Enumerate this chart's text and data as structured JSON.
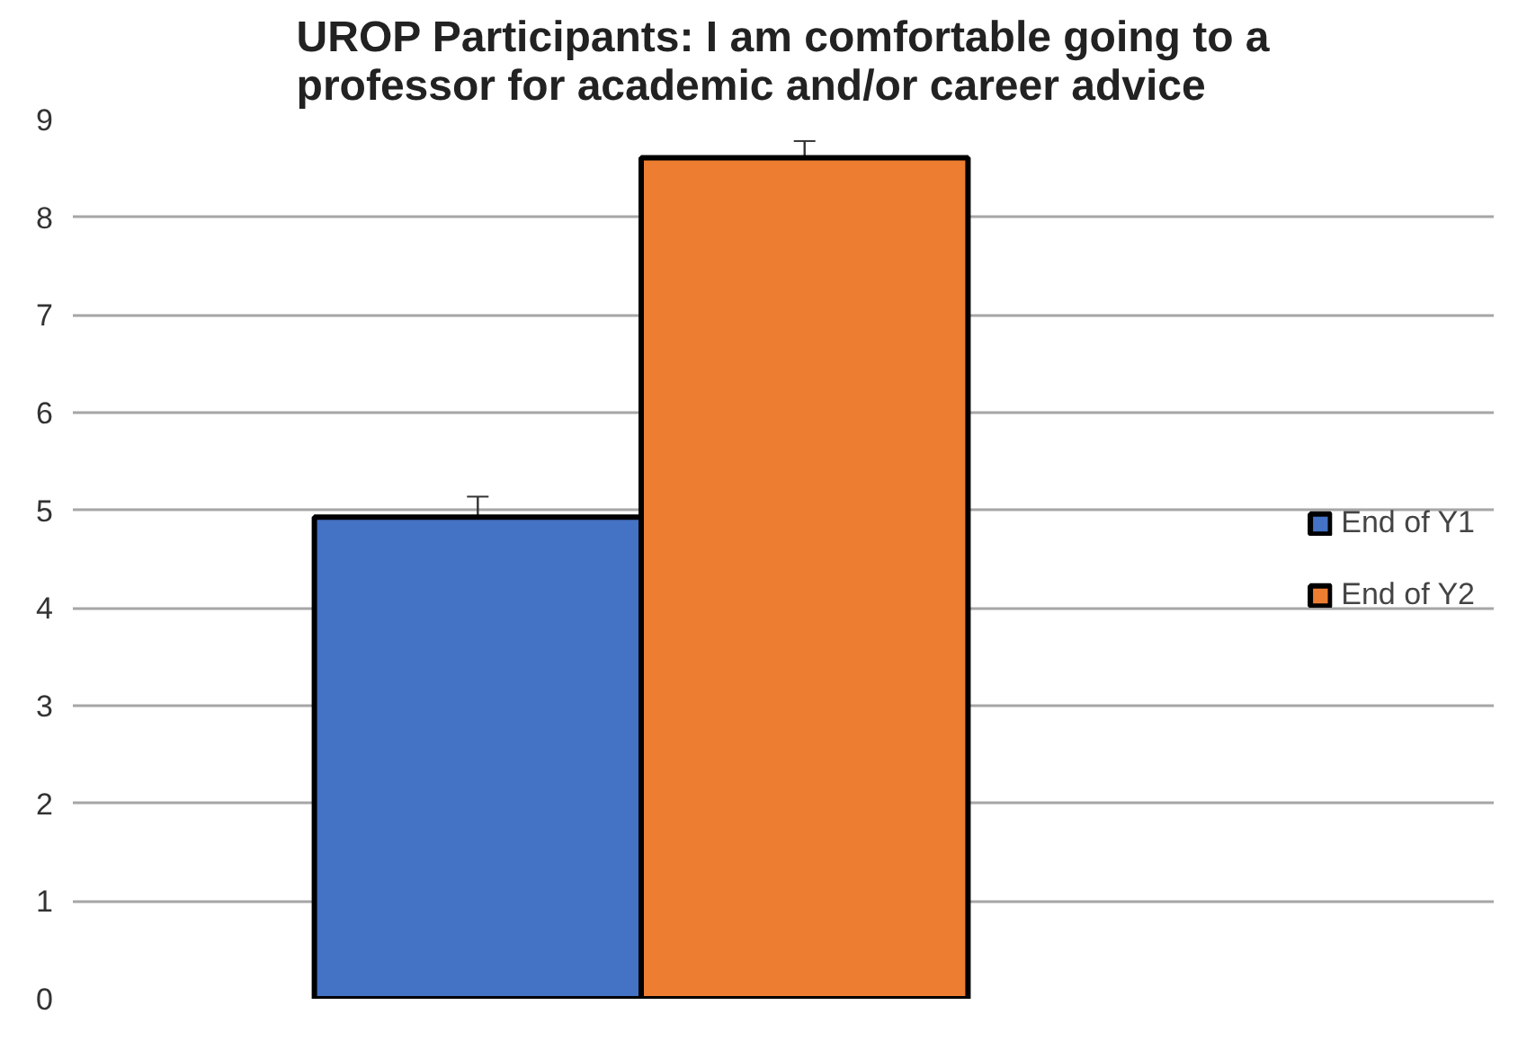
{
  "chart_data": {
    "type": "bar",
    "title": "UROP Participants: I am comfortable going to a\nprofessor for academic and/or career advice",
    "categories": [
      null
    ],
    "series": [
      {
        "name": "End of Y1",
        "color": "#4472c4",
        "values": [
          4.93
        ],
        "errors": [
          0.21
        ]
      },
      {
        "name": "End of Y2",
        "color": "#ed7d31",
        "values": [
          8.61
        ],
        "errors": [
          0.17
        ]
      }
    ],
    "ylim": [
      0,
      9
    ],
    "yticks": [
      0,
      1,
      2,
      3,
      4,
      5,
      6,
      7,
      8,
      9
    ],
    "grid": "y",
    "legend": "right",
    "tick_labels": "y"
  }
}
